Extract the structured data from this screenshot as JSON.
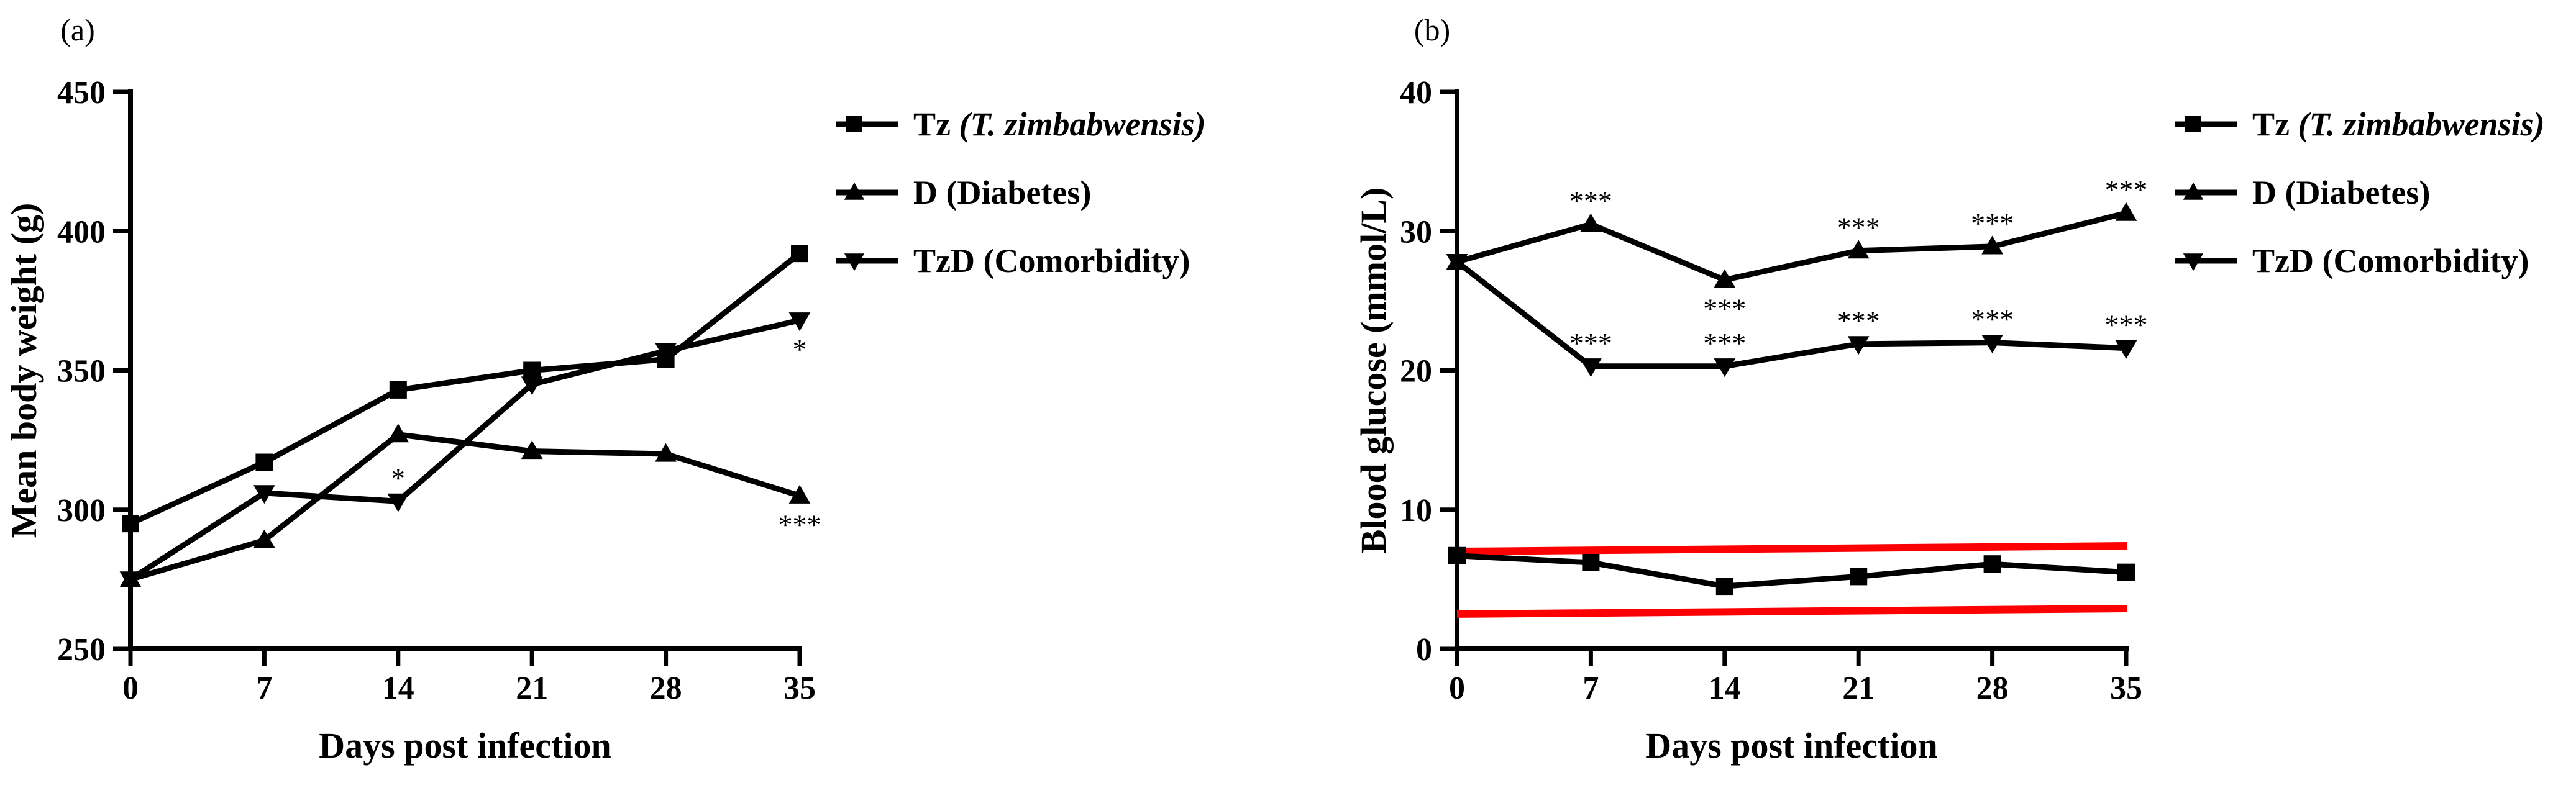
{
  "chart_data": [
    {
      "panel_label": "(a)",
      "type": "line",
      "title": "",
      "xlabel": "Days post infection",
      "ylabel": "Mean body weight (g)",
      "x": [
        0,
        7,
        14,
        21,
        28,
        35
      ],
      "xticks": [
        "0",
        "7",
        "14",
        "21",
        "28",
        "35"
      ],
      "ylim": [
        250,
        450
      ],
      "yticks": [
        "250",
        "300",
        "350",
        "400",
        "450"
      ],
      "ytick_values": [
        250,
        300,
        350,
        400,
        450
      ],
      "legend_position": "right",
      "series": [
        {
          "name": "Tz",
          "name_italic": "(T. zimbabwensis)",
          "marker": "square",
          "values": [
            295,
            317,
            343,
            350,
            354,
            392
          ],
          "annotations": [
            null,
            null,
            null,
            null,
            null,
            null
          ]
        },
        {
          "name": "D (Diabetes)",
          "name_italic": "",
          "marker": "triangle-up",
          "values": [
            275,
            289,
            327,
            321,
            320,
            305
          ],
          "annotations": [
            null,
            null,
            null,
            null,
            null,
            "***"
          ]
        },
        {
          "name": "TzD (Comorbidity)",
          "name_italic": "",
          "marker": "triangle-down",
          "values": [
            275,
            306,
            303,
            345,
            357,
            368
          ],
          "annotations": [
            null,
            null,
            "*",
            null,
            null,
            "*"
          ]
        }
      ]
    },
    {
      "panel_label": "(b)",
      "type": "line",
      "title": "",
      "xlabel": "Days post infection",
      "ylabel": "Blood glucose (mmol/L)",
      "x": [
        0,
        7,
        14,
        21,
        28,
        35
      ],
      "xticks": [
        "0",
        "7",
        "14",
        "21",
        "28",
        "35"
      ],
      "ylim": [
        0,
        40
      ],
      "yticks": [
        "0",
        "10",
        "20",
        "30",
        "40"
      ],
      "ytick_values": [
        0,
        10,
        20,
        30,
        40
      ],
      "legend_position": "right",
      "reference_lines": [
        {
          "color": "#ff0000",
          "y_start": 7.0,
          "y_end": 7.4
        },
        {
          "color": "#ff0000",
          "y_start": 2.5,
          "y_end": 2.9
        }
      ],
      "series": [
        {
          "name": "Tz",
          "name_italic": "(T. zimbabwensis)",
          "marker": "square",
          "values": [
            6.7,
            6.2,
            4.5,
            5.2,
            6.1,
            5.5
          ],
          "annotations": [
            null,
            null,
            null,
            null,
            null,
            null
          ]
        },
        {
          "name": "D (Diabetes)",
          "name_italic": "",
          "marker": "triangle-up",
          "values": [
            27.8,
            30.5,
            26.5,
            28.6,
            28.9,
            31.3
          ],
          "annotations": [
            null,
            "***",
            "***",
            "***",
            "***",
            "***"
          ],
          "annotation_side": [
            null,
            "above",
            "below",
            "above",
            "above",
            "above"
          ]
        },
        {
          "name": "TzD (Comorbidity)",
          "name_italic": "",
          "marker": "triangle-down",
          "values": [
            27.8,
            20.3,
            20.3,
            21.9,
            22.0,
            21.6
          ],
          "annotations": [
            null,
            "***",
            "***",
            "***",
            "***",
            "***"
          ],
          "annotation_side": [
            null,
            "above",
            "above",
            "above",
            "above",
            "above"
          ]
        }
      ]
    }
  ]
}
